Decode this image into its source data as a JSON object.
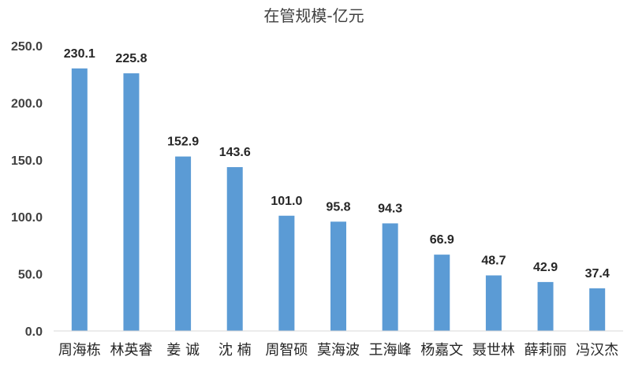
{
  "chart_data": {
    "type": "bar",
    "title": "在管规模-亿元",
    "xlabel": "",
    "ylabel": "",
    "categories": [
      "周海栋",
      "林英睿",
      "姜 诚",
      "沈 楠",
      "周智硕",
      "莫海波",
      "王海峰",
      "杨嘉文",
      "聂世林",
      "薛莉丽",
      "冯汉杰"
    ],
    "values": [
      230.1,
      225.8,
      152.9,
      143.6,
      101.0,
      95.8,
      94.3,
      66.9,
      48.7,
      42.9,
      37.4
    ],
    "data_labels": [
      "230.1",
      "225.8",
      "152.9",
      "143.6",
      "101.0",
      "95.8",
      "94.3",
      "66.9",
      "48.7",
      "42.9",
      "37.4"
    ],
    "ylim": [
      0,
      250
    ],
    "yticks": [
      "0.0",
      "50.0",
      "100.0",
      "150.0",
      "200.0",
      "250.0"
    ],
    "ytick_values": [
      0,
      50,
      100,
      150,
      200,
      250
    ],
    "grid": false,
    "legend": "none",
    "colors": {
      "bar": "#5b9bd5",
      "axis": "#d9d9d9"
    }
  }
}
